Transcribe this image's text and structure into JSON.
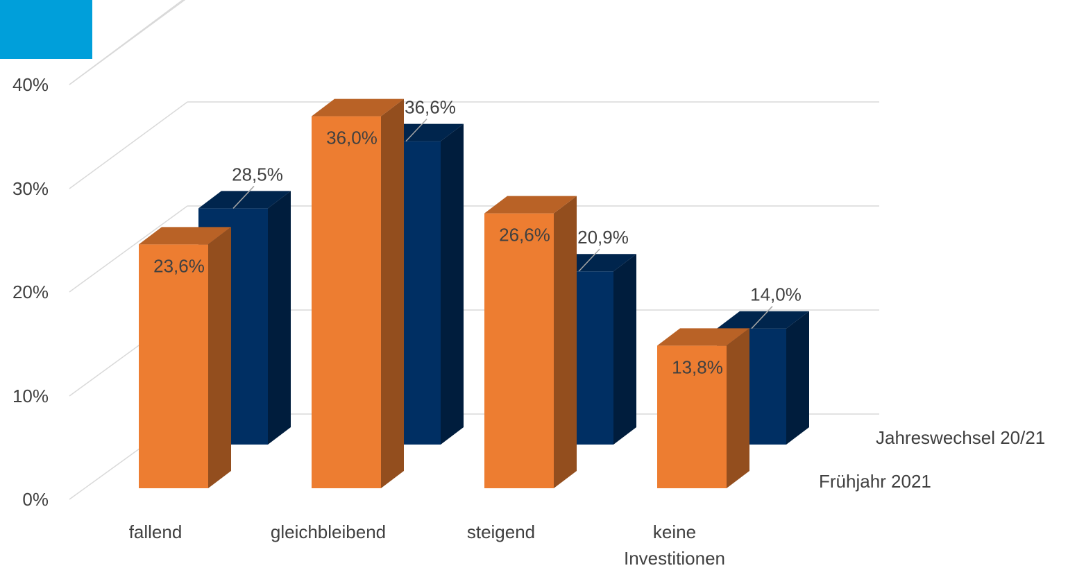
{
  "chart_data": {
    "type": "bar",
    "subtype": "3d-clustered-depth",
    "categories": [
      "fallend",
      "gleichbleibend",
      "steigend",
      "keine Investitionen"
    ],
    "category_lines": [
      [
        "fallend"
      ],
      [
        "gleichbleibend"
      ],
      [
        "steigend"
      ],
      [
        "keine",
        "Investitionen"
      ]
    ],
    "series": [
      {
        "name": "Frühjahr 2021",
        "values": [
          23.6,
          36.0,
          26.6,
          13.8
        ],
        "labels": [
          "23,6%",
          "36,0%",
          "26,6%",
          "13,8%"
        ],
        "color": "#ED7D31"
      },
      {
        "name": "Jahreswechsel 20/21",
        "values": [
          28.5,
          36.6,
          20.9,
          14.0
        ],
        "labels": [
          "28,5%",
          "36,6%",
          "20,9%",
          "14,0%"
        ],
        "color": "#002F63"
      }
    ],
    "y_ticks": [
      0,
      10,
      20,
      30,
      40
    ],
    "y_tick_labels": [
      "0%",
      "10%",
      "20%",
      "30%",
      "40%"
    ],
    "ylim": [
      0,
      40
    ],
    "grid": true,
    "title": "",
    "xlabel": "",
    "ylabel": ""
  },
  "accent_color": "#009FDA"
}
